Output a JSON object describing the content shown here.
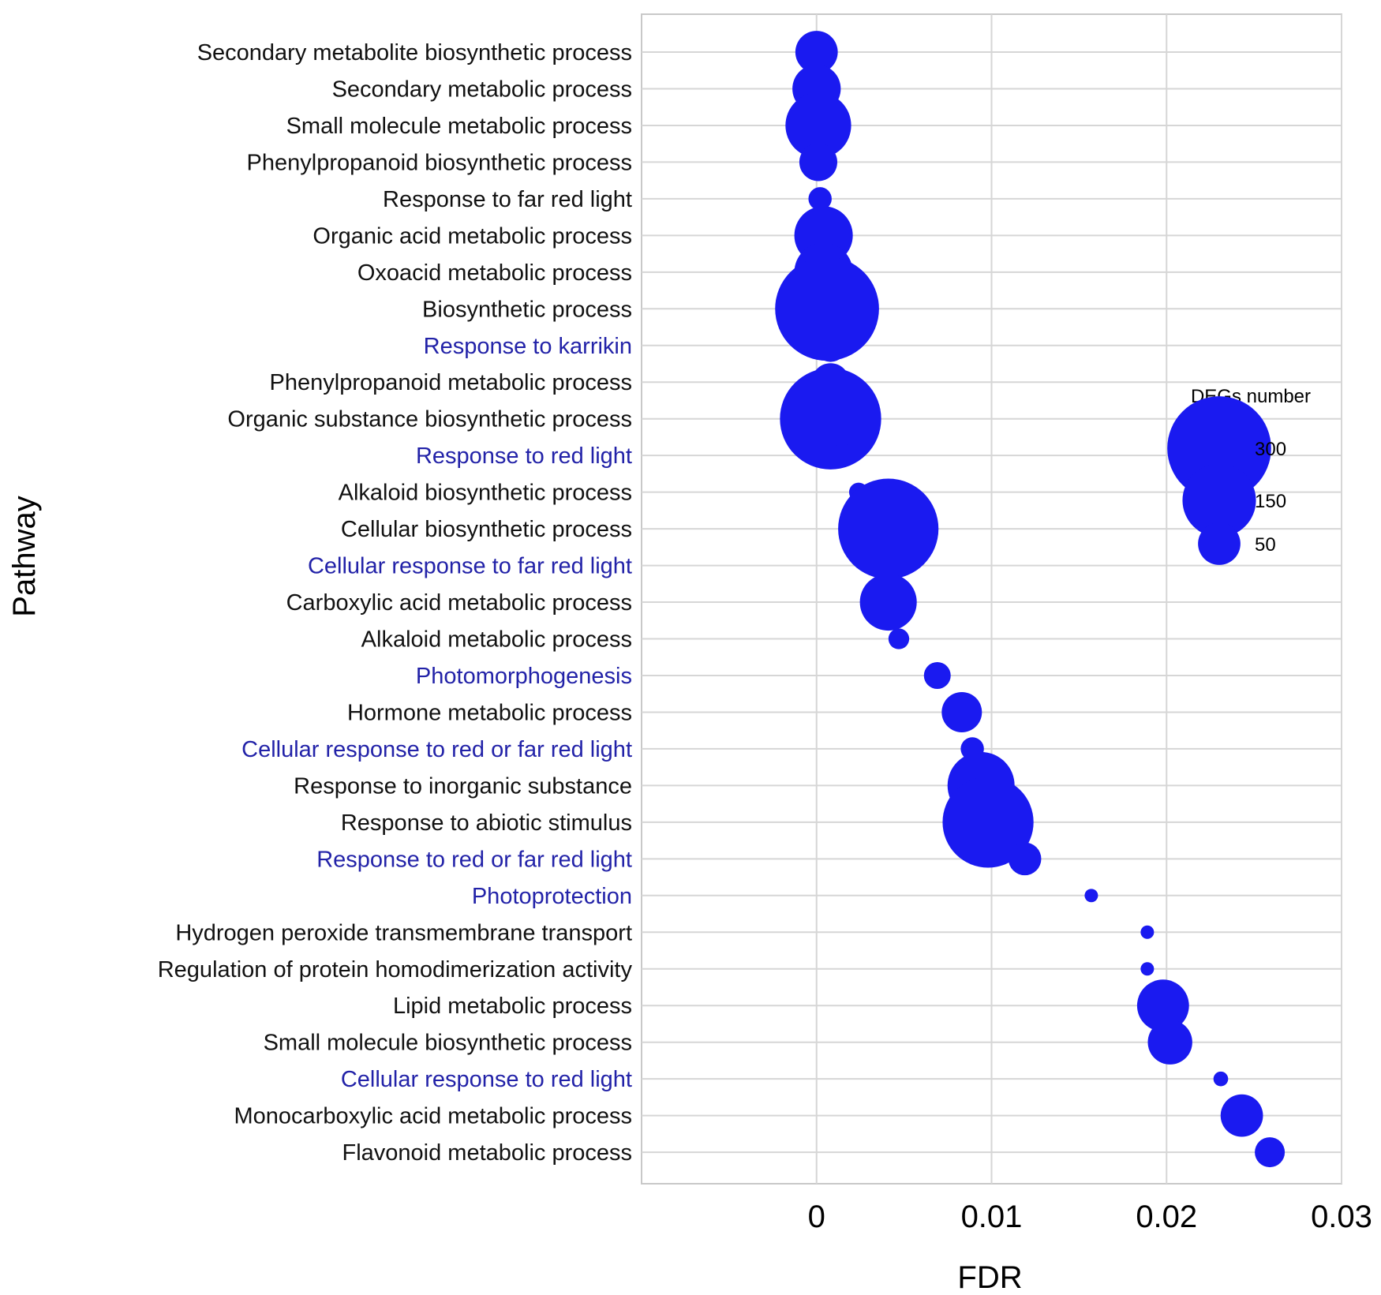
{
  "chart_data": {
    "type": "scatter",
    "subtype": "bubble",
    "xlabel": "FDR",
    "ylabel": "Pathway",
    "xlim": [
      -0.01,
      0.03
    ],
    "xticks": [
      {
        "value": 0,
        "label": "0"
      },
      {
        "value": 0.01,
        "label": "0.01"
      },
      {
        "value": 0.02,
        "label": "0.02"
      },
      {
        "value": 0.03,
        "label": "0.03"
      }
    ],
    "grid": true,
    "point_color": "#1a1af0",
    "label_colors": {
      "default": "#111111",
      "highlight": "#2222a8"
    },
    "legend": {
      "title": "DEGs number",
      "placement": "right",
      "entries": [
        {
          "value": 300,
          "label": "300"
        },
        {
          "value": 150,
          "label": "150"
        },
        {
          "value": 50,
          "label": "50"
        }
      ]
    },
    "points": [
      {
        "pathway": "Secondary metabolite biosynthetic process",
        "fdr": 0.0,
        "degs": 50,
        "highlight": false
      },
      {
        "pathway": "Secondary metabolic process",
        "fdr": 0.0,
        "degs": 65,
        "highlight": false
      },
      {
        "pathway": "Small molecule metabolic process",
        "fdr": 0.0001,
        "degs": 120,
        "highlight": false
      },
      {
        "pathway": "Phenylpropanoid biosynthetic process",
        "fdr": 0.0001,
        "degs": 40,
        "highlight": false
      },
      {
        "pathway": "Response to far red light",
        "fdr": 0.0002,
        "degs": 15,
        "highlight": false
      },
      {
        "pathway": "Organic acid metabolic process",
        "fdr": 0.0004,
        "degs": 95,
        "highlight": false
      },
      {
        "pathway": "Oxoacid metabolic process",
        "fdr": 0.0004,
        "degs": 95,
        "highlight": false
      },
      {
        "pathway": "Biosynthetic process",
        "fdr": 0.0006,
        "degs": 300,
        "highlight": false
      },
      {
        "pathway": "Response to karrikin",
        "fdr": 0.0008,
        "degs": 30,
        "highlight": true
      },
      {
        "pathway": "Phenylpropanoid metabolic process",
        "fdr": 0.0008,
        "degs": 40,
        "highlight": false
      },
      {
        "pathway": "Organic substance biosynthetic process",
        "fdr": 0.0008,
        "degs": 285,
        "highlight": false
      },
      {
        "pathway": "Response to red light",
        "fdr": 0.0015,
        "degs": 15,
        "highlight": true
      },
      {
        "pathway": "Alkaloid biosynthetic process",
        "fdr": 0.0024,
        "degs": 10,
        "highlight": false
      },
      {
        "pathway": "Cellular biosynthetic process",
        "fdr": 0.0041,
        "degs": 280,
        "highlight": false
      },
      {
        "pathway": "Cellular response to far red light",
        "fdr": 0.0041,
        "degs": 5,
        "highlight": true
      },
      {
        "pathway": "Carboxylic acid metabolic process",
        "fdr": 0.0041,
        "degs": 90,
        "highlight": false
      },
      {
        "pathway": "Alkaloid metabolic process",
        "fdr": 0.0047,
        "degs": 12,
        "highlight": false
      },
      {
        "pathway": "Photomorphogenesis",
        "fdr": 0.0069,
        "degs": 20,
        "highlight": true
      },
      {
        "pathway": "Hormone metabolic process",
        "fdr": 0.0083,
        "degs": 45,
        "highlight": false
      },
      {
        "pathway": "Cellular response to red or far red light",
        "fdr": 0.0089,
        "degs": 15,
        "highlight": true
      },
      {
        "pathway": "Response to inorganic substance",
        "fdr": 0.0094,
        "degs": 125,
        "highlight": false
      },
      {
        "pathway": "Response to abiotic stimulus",
        "fdr": 0.0098,
        "degs": 230,
        "highlight": false
      },
      {
        "pathway": "Response to red or far red light",
        "fdr": 0.0119,
        "degs": 30,
        "highlight": true
      },
      {
        "pathway": "Photoprotection",
        "fdr": 0.0157,
        "degs": 5,
        "highlight": true
      },
      {
        "pathway": "Hydrogen peroxide transmembrane transport",
        "fdr": 0.0189,
        "degs": 5,
        "highlight": false
      },
      {
        "pathway": "Regulation of protein homodimerization activity",
        "fdr": 0.0189,
        "degs": 5,
        "highlight": false
      },
      {
        "pathway": "Lipid metabolic process",
        "fdr": 0.0198,
        "degs": 75,
        "highlight": false
      },
      {
        "pathway": "Small molecule biosynthetic process",
        "fdr": 0.0202,
        "degs": 55,
        "highlight": false
      },
      {
        "pathway": "Cellular response to red light",
        "fdr": 0.0231,
        "degs": 6,
        "highlight": true
      },
      {
        "pathway": "Monocarboxylic acid metabolic process",
        "fdr": 0.0243,
        "degs": 50,
        "highlight": false
      },
      {
        "pathway": "Flavonoid metabolic process",
        "fdr": 0.0259,
        "degs": 25,
        "highlight": false
      }
    ]
  }
}
